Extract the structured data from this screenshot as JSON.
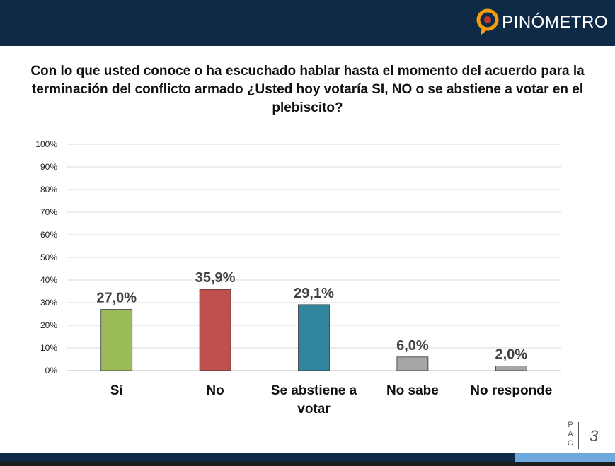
{
  "brand": {
    "name": "PINÓMETRO",
    "colors": {
      "header": "#0e2a47",
      "logo_accent": "#f39c12",
      "footer_light": "#6fa8dc"
    }
  },
  "question": "Con lo que usted conoce o ha escuchado hablar hasta el momento del acuerdo para la terminación del conflicto armado ¿Usted hoy votaría SI, NO o se abstiene a votar en el plebiscito?",
  "page": {
    "label_letters": [
      "P",
      "A",
      "G"
    ],
    "number": "3"
  },
  "chart_data": {
    "type": "bar",
    "title": "",
    "categories": [
      "Sí",
      "No",
      "Se abstiene a votar",
      "No sabe",
      "No responde"
    ],
    "category_lines": [
      [
        "Sí"
      ],
      [
        "No"
      ],
      [
        "Se abstiene a",
        "votar"
      ],
      [
        "No sabe"
      ],
      [
        "No responde"
      ]
    ],
    "values": [
      27.0,
      35.9,
      29.1,
      6.0,
      2.0
    ],
    "value_labels": [
      "27,0%",
      "35,9%",
      "29,1%",
      "6,0%",
      "2,0%"
    ],
    "colors": [
      "#9bbb59",
      "#c0504d",
      "#31859c",
      "#a6a6a6",
      "#a6a6a6"
    ],
    "ylim": [
      0,
      100
    ],
    "yticks": [
      0,
      10,
      20,
      30,
      40,
      50,
      60,
      70,
      80,
      90,
      100
    ],
    "ytick_labels": [
      "0%",
      "10%",
      "20%",
      "30%",
      "40%",
      "50%",
      "60%",
      "70%",
      "80%",
      "90%",
      "100%"
    ],
    "grid": true,
    "xlabel": "",
    "ylabel": ""
  }
}
